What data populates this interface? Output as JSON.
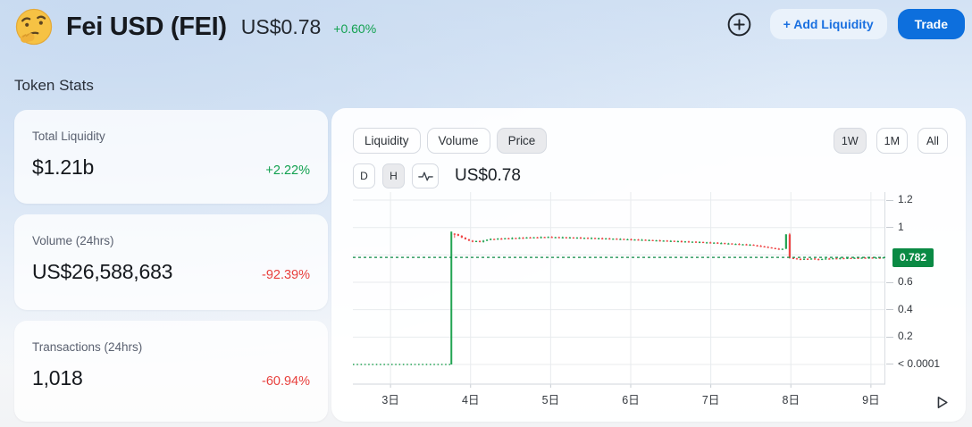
{
  "header": {
    "token_icon": "thinking-face-emoji",
    "title": "Fei USD (FEI)",
    "price": "US$0.78",
    "change": "+0.60%",
    "actions": {
      "add_liquidity": "+ Add Liquidity",
      "trade": "Trade"
    }
  },
  "section_title": "Token Stats",
  "stats_cards": [
    {
      "label": "Total Liquidity",
      "value": "$1.21b",
      "change": "+2.22%",
      "trend": "up"
    },
    {
      "label": "Volume (24hrs)",
      "value": "US$26,588,683",
      "change": "-92.39%",
      "trend": "down"
    },
    {
      "label": "Transactions (24hrs)",
      "value": "1,018",
      "change": "-60.94%",
      "trend": "down"
    }
  ],
  "chart_panel": {
    "metric_tabs": [
      {
        "label": "Liquidity",
        "selected": false
      },
      {
        "label": "Volume",
        "selected": false
      },
      {
        "label": "Price",
        "selected": true
      }
    ],
    "resolution_buttons": [
      {
        "label": "D",
        "selected": false
      },
      {
        "label": "H",
        "selected": true
      }
    ],
    "candle_style_icon": "pulse-icon",
    "current_value": "US$0.78",
    "range_buttons": [
      {
        "label": "1W",
        "selected": true
      },
      {
        "label": "1M",
        "selected": false
      },
      {
        "label": "All",
        "selected": false
      }
    ],
    "chart_data": {
      "type": "candlestick",
      "title": "FEI/USD price, hourly candles, 1 week window",
      "x_domain_days": [
        2.53,
        9.18
      ],
      "x_ticks": [
        {
          "label": "3日",
          "day": 3
        },
        {
          "label": "4日",
          "day": 4
        },
        {
          "label": "5日",
          "day": 5
        },
        {
          "label": "6日",
          "day": 6
        },
        {
          "label": "7日",
          "day": 7
        },
        {
          "label": "8日",
          "day": 8
        },
        {
          "label": "9日",
          "day": 9
        }
      ],
      "y_ticks": [
        {
          "label": "1.2",
          "value": 1.2
        },
        {
          "label": "1",
          "value": 1.0
        },
        {
          "label": "0.6",
          "value": 0.6
        },
        {
          "label": "0.4",
          "value": 0.4
        },
        {
          "label": "0.2",
          "value": 0.2
        },
        {
          "label": "< 0.0001",
          "value": 0.0001
        }
      ],
      "y_gridlines": [
        0,
        0.2,
        0.4,
        0.6,
        0.8,
        1.0,
        1.2
      ],
      "ylim": [
        0,
        1.259
      ],
      "current_price": 0.782,
      "current_price_label": "0.782",
      "prelaunch_level": 0.0001,
      "prelaunch_span_days": [
        2.53,
        3.76
      ],
      "launch_spike": {
        "day": 3.76,
        "low": 0.0001,
        "high": 0.97
      },
      "candles": {
        "start_day": 3.8,
        "day_step": 0.045,
        "first_open": 0.956,
        "closes": [
          0.952,
          0.94,
          0.927,
          0.914,
          0.904,
          0.897,
          0.902,
          0.895,
          0.904,
          0.911,
          0.917,
          0.913,
          0.92,
          0.916,
          0.922,
          0.918,
          0.924,
          0.92,
          0.926,
          0.922,
          0.928,
          0.924,
          0.929,
          0.925,
          0.931,
          0.927,
          0.932,
          0.928,
          0.93,
          0.926,
          0.929,
          0.925,
          0.928,
          0.924,
          0.927,
          0.922,
          0.925,
          0.921,
          0.924,
          0.919,
          0.922,
          0.918,
          0.921,
          0.916,
          0.919,
          0.914,
          0.917,
          0.912,
          0.915,
          0.91,
          0.913,
          0.909,
          0.911,
          0.906,
          0.909,
          0.904,
          0.907,
          0.902,
          0.905,
          0.9,
          0.903,
          0.899,
          0.901,
          0.896,
          0.899,
          0.894,
          0.897,
          0.892,
          0.895,
          0.89,
          0.892,
          0.888,
          0.89,
          0.885,
          0.887,
          0.882,
          0.884,
          0.879,
          0.881,
          0.876,
          0.878,
          0.873,
          0.875,
          0.87,
          0.867,
          0.863,
          0.859,
          0.855,
          0.85,
          0.846,
          0.842,
          0.845,
          0.95,
          0.778,
          0.775,
          0.771,
          0.768,
          0.772,
          0.769,
          0.774,
          0.77,
          0.766,
          0.771,
          0.774,
          0.771,
          0.776,
          0.773,
          0.777,
          0.774,
          0.778,
          0.775,
          0.779,
          0.776,
          0.78,
          0.777,
          0.781,
          0.778,
          0.78,
          0.779,
          0.782
        ],
        "wick_overrides": {
          "0": [
            0.958,
            0.925
          ],
          "92": [
            0.952,
            0.842
          ],
          "93": [
            0.96,
            0.772
          ]
        }
      },
      "colors": {
        "up": "#23a453",
        "down": "#ef4444",
        "price_line": "#0a8a44",
        "badge_bg": "#0a8a44",
        "grid": "#e8ebee",
        "axis": "#d9dde2"
      },
      "legend": "none",
      "grid": "on"
    }
  }
}
